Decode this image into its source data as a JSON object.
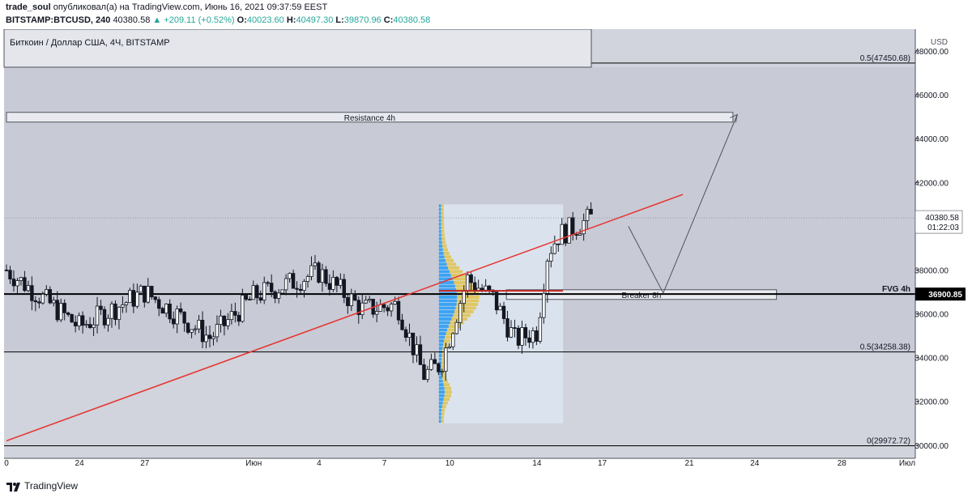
{
  "header": {
    "author": "trade_soul",
    "published_text": "опубликовал(а) на TradingView.com, Июнь 16, 2021 09:37:59 EEST",
    "symbol": "BITSTAMP:BTCUSD, 240",
    "last": "40380.58",
    "change": "▲ +209.11 (+0.52%)",
    "o_label": "O:",
    "o": "40023.60",
    "h_label": "H:",
    "h": "40497.30",
    "l_label": "L:",
    "l": "39870.96",
    "c_label": "C:",
    "c": "40380.58"
  },
  "legend_title": "Биткоин / Доллар США, 4Ч, BITSTAMP",
  "currency": "USD",
  "footer": {
    "brand": "TradingView"
  },
  "colors": {
    "background": "#d1d4dc",
    "trendline": "#e53935",
    "volume_profile_blue": "#2196f3",
    "volume_profile_yellow": "#e0c248",
    "fvg_line": "#000000"
  },
  "chart_data": {
    "type": "candlestick",
    "y_axis": {
      "min": 29400,
      "max": 49000,
      "ticks": [
        30000,
        32000,
        34000,
        36000,
        38000,
        40000,
        42000,
        44000,
        46000,
        48000
      ],
      "tick_labels": [
        "30000.00",
        "32000.00",
        "34000.00",
        "36000.00",
        "38000.00",
        "40000.00",
        "42000.00",
        "44000.00",
        "46000.00",
        "48000.00"
      ]
    },
    "x_axis": {
      "ticks": [
        {
          "label": "0",
          "day": -0.35
        },
        {
          "label": "24",
          "day": 3
        },
        {
          "label": "27",
          "day": 6
        },
        {
          "label": "Июн",
          "day": 11
        },
        {
          "label": "4",
          "day": 14
        },
        {
          "label": "7",
          "day": 17
        },
        {
          "label": "10",
          "day": 20
        },
        {
          "label": "14",
          "day": 24
        },
        {
          "label": "17",
          "day": 27
        },
        {
          "label": "21",
          "day": 31
        },
        {
          "label": "24",
          "day": 34
        },
        {
          "label": "28",
          "day": 38
        },
        {
          "label": "Июл",
          "day": 41
        }
      ]
    },
    "price_label": {
      "value": 40380.58,
      "text": "40380.58",
      "timer": "01:22:03"
    },
    "levels": [
      {
        "label": "0.5(47450.68)",
        "value": 47450.68
      },
      {
        "label": "0.5(34258.38)",
        "value": 34258.38
      },
      {
        "label": "0(29972.72)",
        "value": 29972.72
      },
      {
        "label": "FVG 4h",
        "value": 36900.85,
        "price_text": "36900.85"
      }
    ],
    "zones": [
      {
        "label": "Resistance 4h",
        "from_day": -0.35,
        "to_day": 33,
        "top": 45200,
        "bottom": 44850
      },
      {
        "label": "Breaker 8h",
        "from_day": 22.6,
        "to_day": 35,
        "top": 37100,
        "bottom": 36850
      }
    ],
    "trendline": {
      "from": {
        "day": -0.35,
        "price": 30200
      },
      "to": {
        "day": 30.7,
        "price": 41450
      }
    },
    "breaker_line": {
      "from_day": 19.5,
      "to_day": 25.2,
      "price": 37050
    },
    "projection": [
      {
        "day": 28.2,
        "price": 40000
      },
      {
        "day": 29.8,
        "price": 36950
      },
      {
        "day": 33.2,
        "price": 45100
      }
    ],
    "volume_profile": {
      "from_day": 19.5,
      "to_day": 25.2,
      "top": 41000,
      "bottom": 31000
    },
    "series_days": [
      -0.35,
      3,
      6,
      9,
      11,
      14,
      16,
      17.6,
      18.8,
      19.6,
      20.8,
      22,
      23,
      24,
      24.5,
      25,
      25.8,
      26.5
    ],
    "series_closes": [
      38000,
      35400,
      37000,
      34900,
      36800,
      37900,
      36200,
      36400,
      33200,
      33700,
      37600,
      36700,
      34800,
      35200,
      38800,
      39600,
      40000,
      40380
    ]
  }
}
